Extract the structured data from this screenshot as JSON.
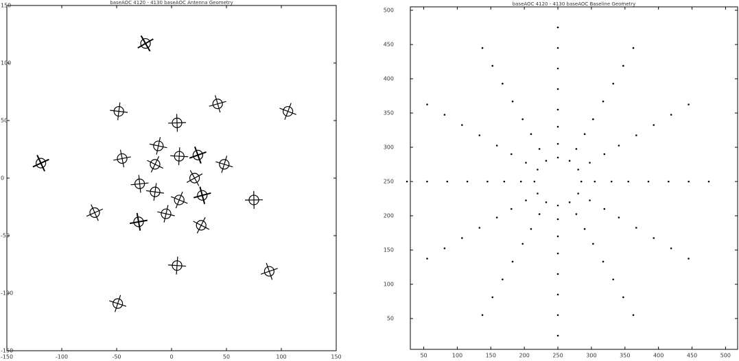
{
  "chart_data": [
    {
      "type": "scatter",
      "title": "baseAOC 4120 - 4130 baseAOC Antenna Geometry",
      "marker": "circle-cross",
      "color": "#000000",
      "xlim": [
        -150,
        150
      ],
      "ylim": [
        -150,
        150
      ],
      "xticks": [
        -150,
        -100,
        -50,
        0,
        50,
        100,
        150
      ],
      "yticks": [
        -150,
        -100,
        -50,
        0,
        50,
        100,
        150
      ],
      "x": [
        -23.7,
        -48,
        42,
        106,
        5,
        -119,
        -12,
        -45,
        -15,
        7,
        24,
        48,
        -29,
        21,
        -15,
        28,
        7,
        75,
        -70,
        -5,
        -30,
        27,
        5,
        89,
        -49
      ],
      "y": [
        117,
        58,
        64.5,
        58,
        48,
        13,
        28,
        17,
        12,
        19,
        20,
        12,
        -5,
        0,
        -12,
        -15,
        -19,
        -19,
        -30,
        -31,
        -38,
        -41,
        -76,
        -81,
        -109
      ]
    },
    {
      "type": "scatter",
      "title": "baseAOC 4120 - 4130 baseAOC Baseline Geometry",
      "marker": "dot",
      "color": "#000000",
      "xlim": [
        30,
        518
      ],
      "ylim": [
        5,
        505
      ],
      "xticks": [
        50,
        100,
        150,
        200,
        250,
        300,
        350,
        400,
        450,
        500
      ],
      "yticks": [
        50,
        100,
        150,
        200,
        250,
        300,
        350,
        400,
        450,
        500
      ],
      "x": [
        475,
        444.9,
        362.5,
        250,
        137.5,
        55.1,
        25,
        55.1,
        137.5,
        250,
        362.5,
        444.9,
        445,
        418.9,
        347.5,
        250,
        152.5,
        81.1,
        55,
        81.1,
        152.5,
        250,
        347.5,
        418.9,
        415,
        392.9,
        332.5,
        250,
        167.5,
        107.1,
        85,
        107.1,
        167.5,
        250,
        332.5,
        392.9,
        385,
        366.9,
        317.5,
        250,
        182.5,
        133.1,
        115,
        133.1,
        182.5,
        250,
        317.5,
        366.9,
        355,
        340.9,
        302.5,
        250,
        197.5,
        159.1,
        145,
        159.1,
        197.5,
        250,
        302.5,
        340.9,
        330,
        319.3,
        290,
        250,
        210,
        180.7,
        170,
        180.7,
        210,
        250,
        290,
        319.3,
        305,
        297.6,
        277.5,
        250,
        222.5,
        202.4,
        195,
        202.4,
        222.5,
        250,
        277.5,
        297.6,
        285,
        280.3,
        267.5,
        250,
        232.5,
        219.7,
        215,
        219.7,
        232.5,
        250,
        267.5,
        280.3
      ],
      "y": [
        250,
        362.5,
        444.9,
        475,
        444.9,
        362.5,
        250,
        137.5,
        55.1,
        25,
        55.1,
        137.5,
        250,
        347.5,
        418.9,
        445,
        418.9,
        347.5,
        250,
        152.5,
        81.1,
        55,
        81.1,
        152.5,
        250,
        332.5,
        392.9,
        415,
        392.9,
        332.5,
        250,
        167.5,
        107.1,
        85,
        107.1,
        167.5,
        250,
        317.5,
        366.9,
        385,
        366.9,
        317.5,
        250,
        182.5,
        133.1,
        115,
        133.1,
        182.5,
        250,
        302.5,
        340.9,
        355,
        340.9,
        302.5,
        250,
        197.5,
        159.1,
        145,
        159.1,
        197.5,
        250,
        290,
        319.3,
        330,
        319.3,
        290,
        250,
        210,
        180.7,
        170,
        180.7,
        210,
        250,
        277.5,
        297.6,
        305,
        297.6,
        277.5,
        250,
        222.5,
        202.4,
        195,
        202.4,
        222.5,
        250,
        267.5,
        280.3,
        285,
        280.3,
        267.5,
        250,
        232.5,
        219.7,
        215,
        219.7,
        232.5
      ]
    }
  ]
}
